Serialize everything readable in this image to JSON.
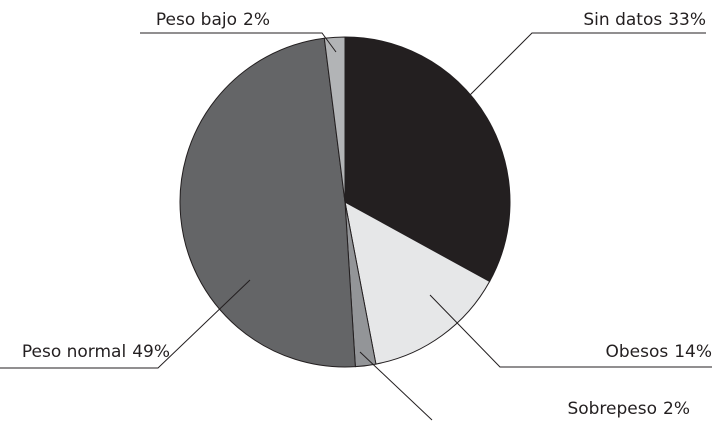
{
  "chart_data": {
    "type": "pie",
    "categories": [
      "Sin datos",
      "Obesos",
      "Sobrepeso",
      "Peso normal",
      "Peso bajo"
    ],
    "values": [
      33,
      14,
      2,
      49,
      2
    ],
    "value_labels": [
      "33%",
      "14%",
      "2%",
      "49%",
      "2%"
    ],
    "colors": [
      "#231f20",
      "#e6e7e8",
      "#939598",
      "#646567",
      "#b2b4b6"
    ]
  }
}
